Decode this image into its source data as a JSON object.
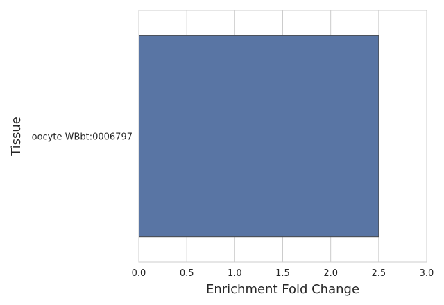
{
  "chart_data": {
    "type": "bar",
    "orientation": "horizontal",
    "categories": [
      "oocyte WBbt:0006797"
    ],
    "values": [
      2.5
    ],
    "xlabel": "Enrichment Fold Change",
    "ylabel": "Tissue",
    "xlim": [
      0.0,
      3.0
    ],
    "xticks": [
      "0.0",
      "0.5",
      "1.0",
      "1.5",
      "2.0",
      "2.5",
      "3.0"
    ],
    "grid": true,
    "bar_color": "#5975a4",
    "bar_edge_color": "#4a4a4a",
    "grid_color": "#cccccc",
    "spine_color": "#cccccc"
  }
}
